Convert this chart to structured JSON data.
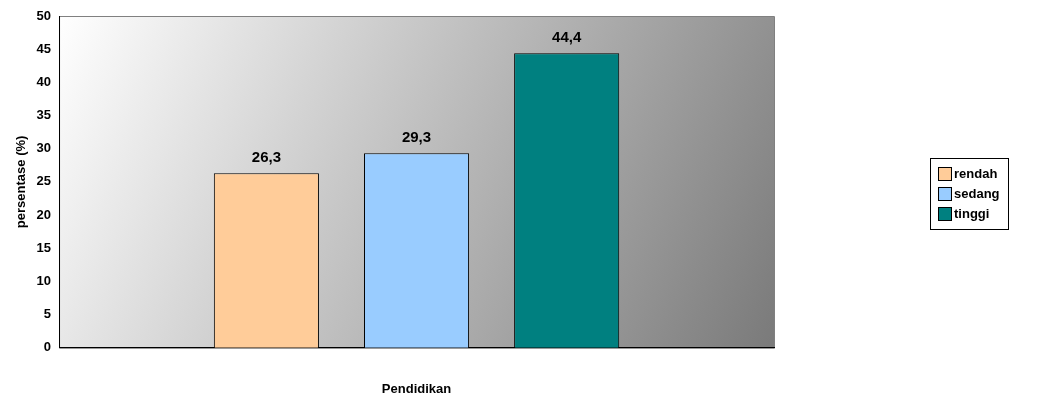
{
  "chart_data": {
    "type": "bar",
    "xlabel": "Pendidikan",
    "ylabel": "persentase (%)",
    "categories": [
      null
    ],
    "series": [
      {
        "name": "rendah",
        "color": "#ffcc99",
        "values": [
          26.3
        ],
        "value_labels": [
          "26,3"
        ]
      },
      {
        "name": "sedang",
        "color": "#99ccff",
        "values": [
          29.3
        ],
        "value_labels": [
          "29,3"
        ]
      },
      {
        "name": "tinggi",
        "color": "#008080",
        "values": [
          44.4
        ],
        "value_labels": [
          "44,4"
        ]
      }
    ],
    "ylim": [
      0,
      50
    ],
    "yticks": [
      0,
      5,
      10,
      15,
      20,
      25,
      30,
      35,
      40,
      45,
      50
    ],
    "legend": "right"
  }
}
